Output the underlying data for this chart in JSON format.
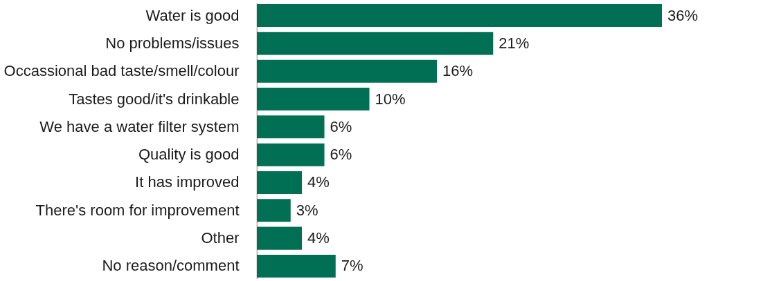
{
  "chart_data": {
    "type": "bar",
    "orientation": "horizontal",
    "categories": [
      "Water is good",
      "No problems/issues",
      "Occassional bad taste/smell/colour",
      "Tastes good/it's drinkable",
      "We have a water filter system",
      "Quality is good",
      "It has improved",
      "There's room for improvement",
      "Other",
      "No reason/comment"
    ],
    "values": [
      36,
      21,
      16,
      10,
      6,
      6,
      4,
      3,
      4,
      7
    ],
    "value_labels": [
      "36%",
      "21%",
      "16%",
      "10%",
      "6%",
      "6%",
      "4%",
      "3%",
      "4%",
      "7%"
    ],
    "color": "#006f53"
  }
}
